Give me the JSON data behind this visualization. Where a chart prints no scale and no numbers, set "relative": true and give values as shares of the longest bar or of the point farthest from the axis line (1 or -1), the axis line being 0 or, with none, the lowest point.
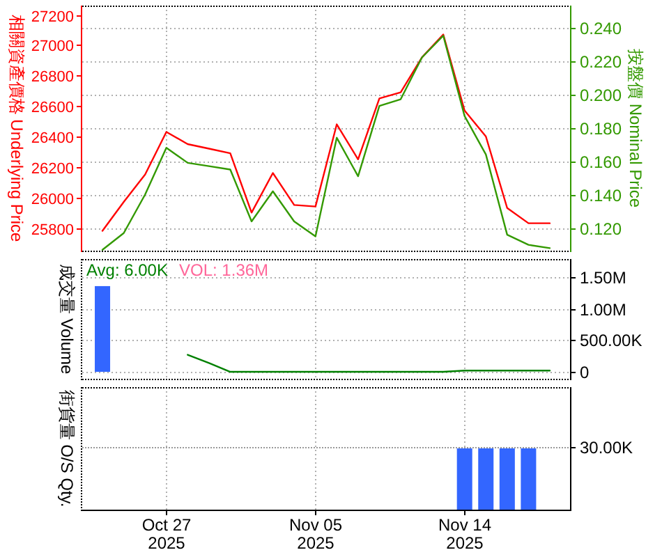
{
  "chart_data": [
    {
      "type": "line",
      "categories": [
        null,
        null,
        null,
        null,
        null,
        null,
        null,
        null,
        null,
        null,
        null,
        null,
        null,
        null,
        null,
        null,
        null,
        null,
        null,
        null,
        null,
        null
      ],
      "ylabel": "相關資產價格 Underlying Price",
      "y2label": "按盤價 Nominal Price",
      "series": [
        {
          "color": "#ff0000",
          "values": [
            25780,
            25970,
            26150,
            26430,
            26350,
            26320,
            26290,
            25900,
            26160,
            25950,
            25940,
            26480,
            26250,
            26650,
            26690,
            26920,
            27070,
            26570,
            26400,
            25930,
            25830,
            25830
          ]
        },
        {
          "color": "#339900",
          "axis": "y2",
          "values": [
            0.107,
            0.117,
            0.14,
            0.168,
            0.159,
            0.157,
            0.155,
            0.124,
            0.142,
            0.124,
            0.115,
            0.174,
            0.151,
            0.193,
            0.197,
            0.222,
            0.235,
            0.187,
            0.164,
            0.116,
            0.11,
            0.108
          ]
        }
      ],
      "ylim": [
        25650,
        27260
      ],
      "yticks": [
        25800,
        26000,
        26200,
        26400,
        26600,
        26800,
        27000,
        27200
      ],
      "y2lim": [
        0.1065,
        0.253
      ],
      "y2ticks": [
        {
          "value": 0.12,
          "label": "0.120"
        },
        {
          "value": 0.14,
          "label": "0.140"
        },
        {
          "value": 0.16,
          "label": "0.160"
        },
        {
          "value": 0.18,
          "label": "0.180"
        },
        {
          "value": 0.2,
          "label": "0.200"
        },
        {
          "value": 0.22,
          "label": "0.220"
        },
        {
          "value": 0.24,
          "label": "0.240"
        }
      ],
      "grid": true,
      "tick_labels": "y"
    },
    {
      "type": "bar",
      "categories": [
        null,
        null,
        null,
        null,
        null,
        null,
        null,
        null,
        null,
        null,
        null,
        null,
        null,
        null,
        null,
        null,
        null,
        null,
        null,
        null,
        null,
        null
      ],
      "ylabel": "成交量 Volume",
      "annotations": [
        "Avg: 6.00K",
        "VOL: 1.36M"
      ],
      "series": [
        {
          "color": "#3366ff",
          "values": [
            1360000,
            null,
            null,
            null,
            null,
            null,
            null,
            null,
            null,
            null,
            null,
            null,
            null,
            null,
            null,
            null,
            null,
            null,
            null,
            null,
            null,
            null
          ]
        },
        {
          "type": "line",
          "color": "#008000",
          "values": [
            null,
            null,
            null,
            null,
            270000,
            140000,
            0,
            0,
            0,
            0,
            0,
            0,
            0,
            0,
            0,
            0,
            0,
            20000,
            20000,
            20000,
            20000,
            20000
          ]
        }
      ],
      "ylim": [
        -110000,
        1790000
      ],
      "yticks": [
        0,
        {
          "value": 500000,
          "label": "500.00K"
        },
        {
          "value": 1000000,
          "label": "1.00M"
        },
        {
          "value": 1500000,
          "label": "1.50M"
        }
      ],
      "grid": true,
      "tick_labels": "y"
    },
    {
      "type": "bar",
      "relative": true,
      "categories": [
        null,
        null,
        null,
        "Oct 27\n2025",
        null,
        null,
        null,
        null,
        null,
        null,
        "Nov 05\n2025",
        null,
        null,
        null,
        null,
        null,
        null,
        "Nov 14\n2025",
        null,
        null,
        null,
        null
      ],
      "ylabel": "街貨量 O/S Qty.",
      "color": "#3366ff",
      "values": [
        null,
        null,
        null,
        null,
        null,
        null,
        null,
        null,
        null,
        null,
        null,
        null,
        null,
        null,
        null,
        null,
        null,
        1,
        1,
        1,
        1,
        null
      ],
      "ref_lines": [
        {
          "axis": "y",
          "value": 1,
          "label": "30.00K",
          "color": "#999999",
          "line_style": "dotted"
        }
      ],
      "grid": "x",
      "tick_labels": "x"
    }
  ]
}
